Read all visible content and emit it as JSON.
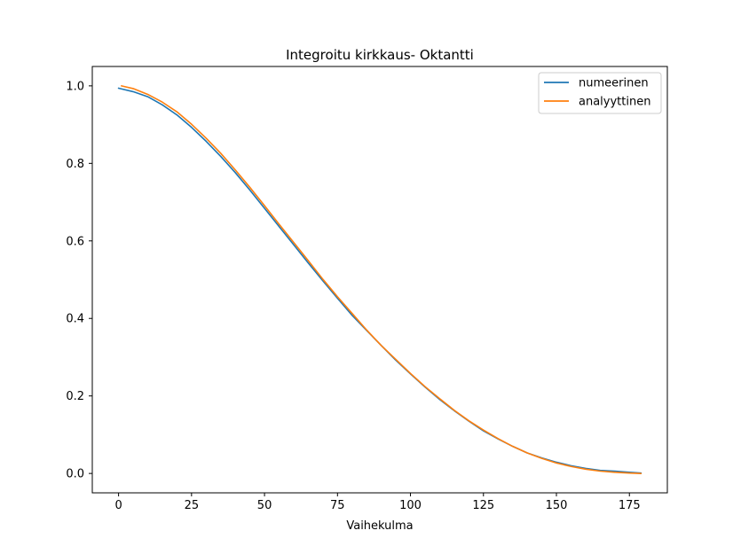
{
  "chart_data": {
    "type": "line",
    "title": "Integroitu kirkkaus- Oktantti",
    "xlabel": "Vaihekulma",
    "ylabel": "",
    "xlim": [
      -9,
      188
    ],
    "ylim": [
      -0.05,
      1.05
    ],
    "xticks": [
      0,
      25,
      50,
      75,
      100,
      125,
      150,
      175
    ],
    "xtick_labels": [
      "0",
      "25",
      "50",
      "75",
      "100",
      "125",
      "150",
      "175"
    ],
    "yticks": [
      0.0,
      0.2,
      0.4,
      0.6,
      0.8,
      1.0
    ],
    "ytick_labels": [
      "0.0",
      "0.2",
      "0.4",
      "0.6",
      "0.8",
      "1.0"
    ],
    "grid": false,
    "legend_position": "top-right",
    "series": [
      {
        "name": "numeerinen",
        "color": "#1f77b4",
        "x": [
          0,
          5,
          10,
          15,
          20,
          25,
          30,
          35,
          40,
          45,
          50,
          55,
          60,
          65,
          70,
          75,
          80,
          85,
          90,
          95,
          100,
          105,
          110,
          115,
          120,
          125,
          130,
          135,
          140,
          145,
          150,
          155,
          160,
          165,
          170,
          175,
          179
        ],
        "y": [
          0.994,
          0.985,
          0.972,
          0.951,
          0.925,
          0.893,
          0.857,
          0.818,
          0.776,
          0.731,
          0.684,
          0.637,
          0.59,
          0.543,
          0.497,
          0.452,
          0.408,
          0.369,
          0.33,
          0.292,
          0.257,
          0.223,
          0.191,
          0.162,
          0.135,
          0.11,
          0.089,
          0.07,
          0.053,
          0.04,
          0.029,
          0.02,
          0.013,
          0.008,
          0.006,
          0.003,
          0.001
        ]
      },
      {
        "name": "analyyttinen",
        "color": "#ff7f0e",
        "x": [
          1,
          5,
          10,
          15,
          20,
          25,
          30,
          35,
          40,
          45,
          50,
          55,
          60,
          65,
          70,
          75,
          80,
          85,
          90,
          95,
          100,
          105,
          110,
          115,
          120,
          125,
          130,
          135,
          140,
          145,
          150,
          155,
          160,
          165,
          170,
          175,
          179
        ],
        "y": [
          1.0,
          0.993,
          0.978,
          0.958,
          0.933,
          0.901,
          0.865,
          0.826,
          0.783,
          0.738,
          0.691,
          0.643,
          0.596,
          0.549,
          0.501,
          0.456,
          0.413,
          0.37,
          0.33,
          0.294,
          0.258,
          0.224,
          0.193,
          0.163,
          0.136,
          0.112,
          0.09,
          0.07,
          0.053,
          0.039,
          0.027,
          0.018,
          0.011,
          0.006,
          0.003,
          0.001,
          0.0
        ]
      }
    ]
  }
}
